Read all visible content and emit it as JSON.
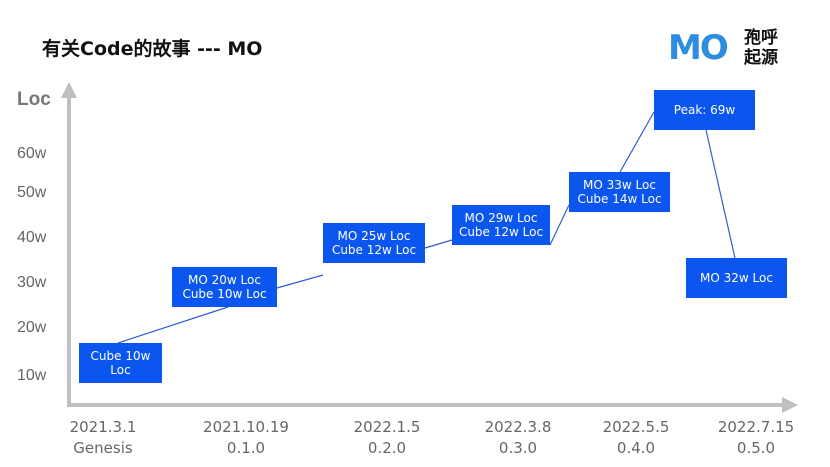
{
  "title": "有关Code的故事 --- MO",
  "logo": {
    "mark": "MO",
    "line1": "孢呼",
    "line2": "起源"
  },
  "colors": {
    "box": "#0b56ee",
    "axis": "#bfbfbf",
    "line": "#2f5fd0"
  },
  "chart_data": {
    "type": "line",
    "title": "有关Code的故事 --- MO",
    "ylabel": "Loc",
    "xlabel": "",
    "y_ticks": [
      "10w",
      "20w",
      "30w",
      "40w",
      "50w",
      "60w"
    ],
    "x_ticks": [
      {
        "date": "2021.3.1",
        "label": "Genesis"
      },
      {
        "date": "2021.10.19",
        "label": "0.1.0"
      },
      {
        "date": "2022.1.5",
        "label": "0.2.0"
      },
      {
        "date": "2022.3.8",
        "label": "0.3.0"
      },
      {
        "date": "2022.5.5",
        "label": "0.4.0"
      },
      {
        "date": "2022.7.15",
        "label": "0.5.0"
      }
    ],
    "points": [
      {
        "x": "2021.3.1",
        "mo": 0,
        "cube": 10,
        "lines": [
          "Cube 10w",
          "Loc"
        ]
      },
      {
        "x": "2021.10.19",
        "mo": 20,
        "cube": 10,
        "lines": [
          "MO 20w Loc",
          "Cube 10w Loc"
        ]
      },
      {
        "x": "2022.1.5",
        "mo": 25,
        "cube": 12,
        "lines": [
          "MO 25w Loc",
          "Cube 12w Loc"
        ]
      },
      {
        "x": "2022.3.8",
        "mo": 29,
        "cube": 12,
        "lines": [
          "MO 29w Loc",
          "Cube 12w Loc"
        ]
      },
      {
        "x": "2022.5.5",
        "mo": 33,
        "cube": 14,
        "lines": [
          "MO 33w Loc",
          "Cube 14w Loc"
        ]
      },
      {
        "x": "2022.7.15",
        "peak": 69,
        "lines": [
          "Peak: 69w"
        ]
      },
      {
        "x": "2022.7.15",
        "mo": 32,
        "lines": [
          "MO 32w Loc"
        ]
      }
    ]
  }
}
